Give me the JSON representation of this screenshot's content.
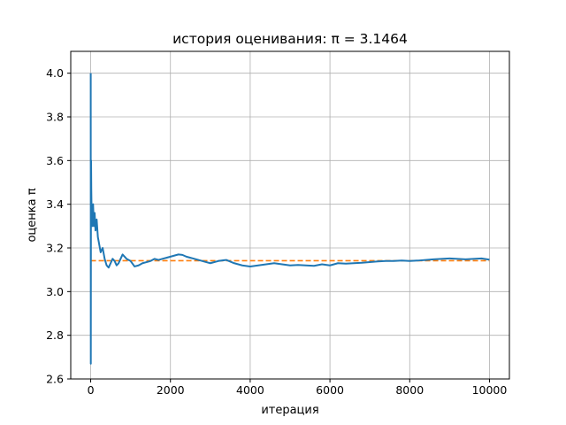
{
  "chart_data": {
    "type": "line",
    "title": "история оценивания: π = 3.1464",
    "xlabel": "итерация",
    "ylabel": "оценка π",
    "xlim": [
      -500,
      10500
    ],
    "ylim": [
      2.6,
      4.1
    ],
    "xticks": [
      0,
      2000,
      4000,
      6000,
      8000,
      10000
    ],
    "yticks": [
      2.6,
      2.8,
      3.0,
      3.2,
      3.4,
      3.6,
      3.8,
      4.0
    ],
    "grid": true,
    "colors": {
      "estimate": "#1f77b4",
      "reference": "#ff7f0e"
    },
    "series": [
      {
        "style": "solid",
        "x": [
          1,
          3,
          6,
          10,
          15,
          20,
          30,
          40,
          50,
          60,
          80,
          100,
          120,
          150,
          180,
          200,
          250,
          300,
          350,
          400,
          450,
          500,
          550,
          600,
          650,
          700,
          750,
          800,
          900,
          1000,
          1100,
          1200,
          1300,
          1400,
          1500,
          1600,
          1700,
          1800,
          1900,
          2000,
          2100,
          2200,
          2300,
          2400,
          2500,
          2600,
          2700,
          2800,
          2900,
          3000,
          3200,
          3400,
          3600,
          3800,
          4000,
          4200,
          4400,
          4600,
          4800,
          5000,
          5200,
          5400,
          5600,
          5800,
          6000,
          6200,
          6400,
          6600,
          6800,
          7000,
          7200,
          7400,
          7600,
          7800,
          8000,
          8200,
          8400,
          8600,
          8800,
          9000,
          9200,
          9400,
          9600,
          9800,
          10000
        ],
        "y": [
          4.0,
          2.67,
          3.33,
          3.6,
          3.47,
          3.4,
          3.33,
          3.3,
          3.36,
          3.4,
          3.3,
          3.36,
          3.28,
          3.33,
          3.25,
          3.23,
          3.18,
          3.2,
          3.15,
          3.12,
          3.11,
          3.13,
          3.15,
          3.14,
          3.12,
          3.13,
          3.15,
          3.17,
          3.15,
          3.14,
          3.115,
          3.12,
          3.13,
          3.135,
          3.14,
          3.15,
          3.145,
          3.15,
          3.155,
          3.16,
          3.165,
          3.17,
          3.168,
          3.16,
          3.155,
          3.15,
          3.145,
          3.14,
          3.135,
          3.13,
          3.14,
          3.145,
          3.13,
          3.12,
          3.115,
          3.12,
          3.125,
          3.13,
          3.125,
          3.12,
          3.122,
          3.12,
          3.118,
          3.125,
          3.12,
          3.13,
          3.128,
          3.13,
          3.132,
          3.135,
          3.138,
          3.14,
          3.14,
          3.142,
          3.14,
          3.142,
          3.145,
          3.148,
          3.15,
          3.152,
          3.15,
          3.148,
          3.15,
          3.152,
          3.1464
        ]
      },
      {
        "style": "dashed",
        "x": [
          0,
          10000
        ],
        "y": [
          3.14159,
          3.14159
        ]
      }
    ]
  }
}
